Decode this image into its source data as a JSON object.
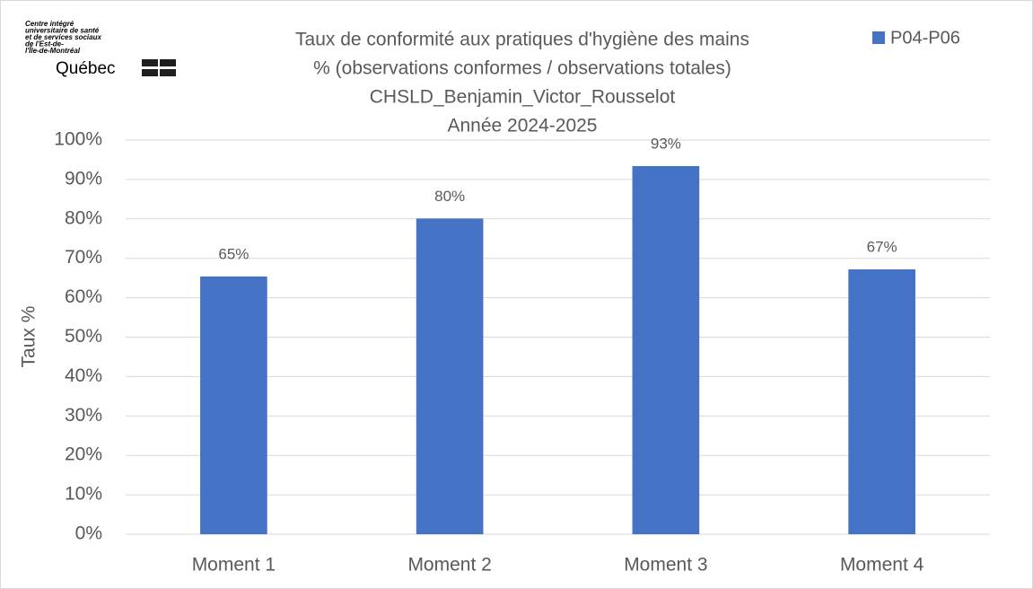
{
  "chart_data": {
    "type": "bar",
    "logo": {
      "lines": [
        "Centre intégré",
        "universitaire de santé",
        "et de services sociaux",
        "de l'Est-de-",
        "l'Île-de-Montréal"
      ],
      "name": "Québec"
    },
    "title": [
      "Taux de conformité aux pratiques d'hygiène des mains",
      "% (observations conformes / observations totales)",
      "CHSLD_Benjamin_Victor_Rousselot",
      "Année 2024-2025"
    ],
    "y_label": "Taux %",
    "categories": [
      "Moment 1",
      "Moment 2",
      "Moment 3",
      "Moment 4"
    ],
    "series": [
      {
        "name": "P04-P06",
        "color": "#4472c4",
        "values": [
          65.4,
          80.1,
          93.4,
          67.2
        ],
        "value_labels": [
          "65%",
          "80%",
          "93%",
          "67%"
        ]
      }
    ],
    "ylim": [
      0,
      100
    ],
    "yticks": [
      {
        "value": 0,
        "label": "0%"
      },
      {
        "value": 10,
        "label": "10%"
      },
      {
        "value": 20,
        "label": "20%"
      },
      {
        "value": 30,
        "label": "30%"
      },
      {
        "value": 40,
        "label": "40%"
      },
      {
        "value": 50,
        "label": "50%"
      },
      {
        "value": 60,
        "label": "60%"
      },
      {
        "value": 70,
        "label": "70%"
      },
      {
        "value": 80,
        "label": "80%"
      },
      {
        "value": 90,
        "label": "90%"
      },
      {
        "value": 100,
        "label": "100%"
      }
    ],
    "grid": true,
    "legend": "top-right"
  }
}
